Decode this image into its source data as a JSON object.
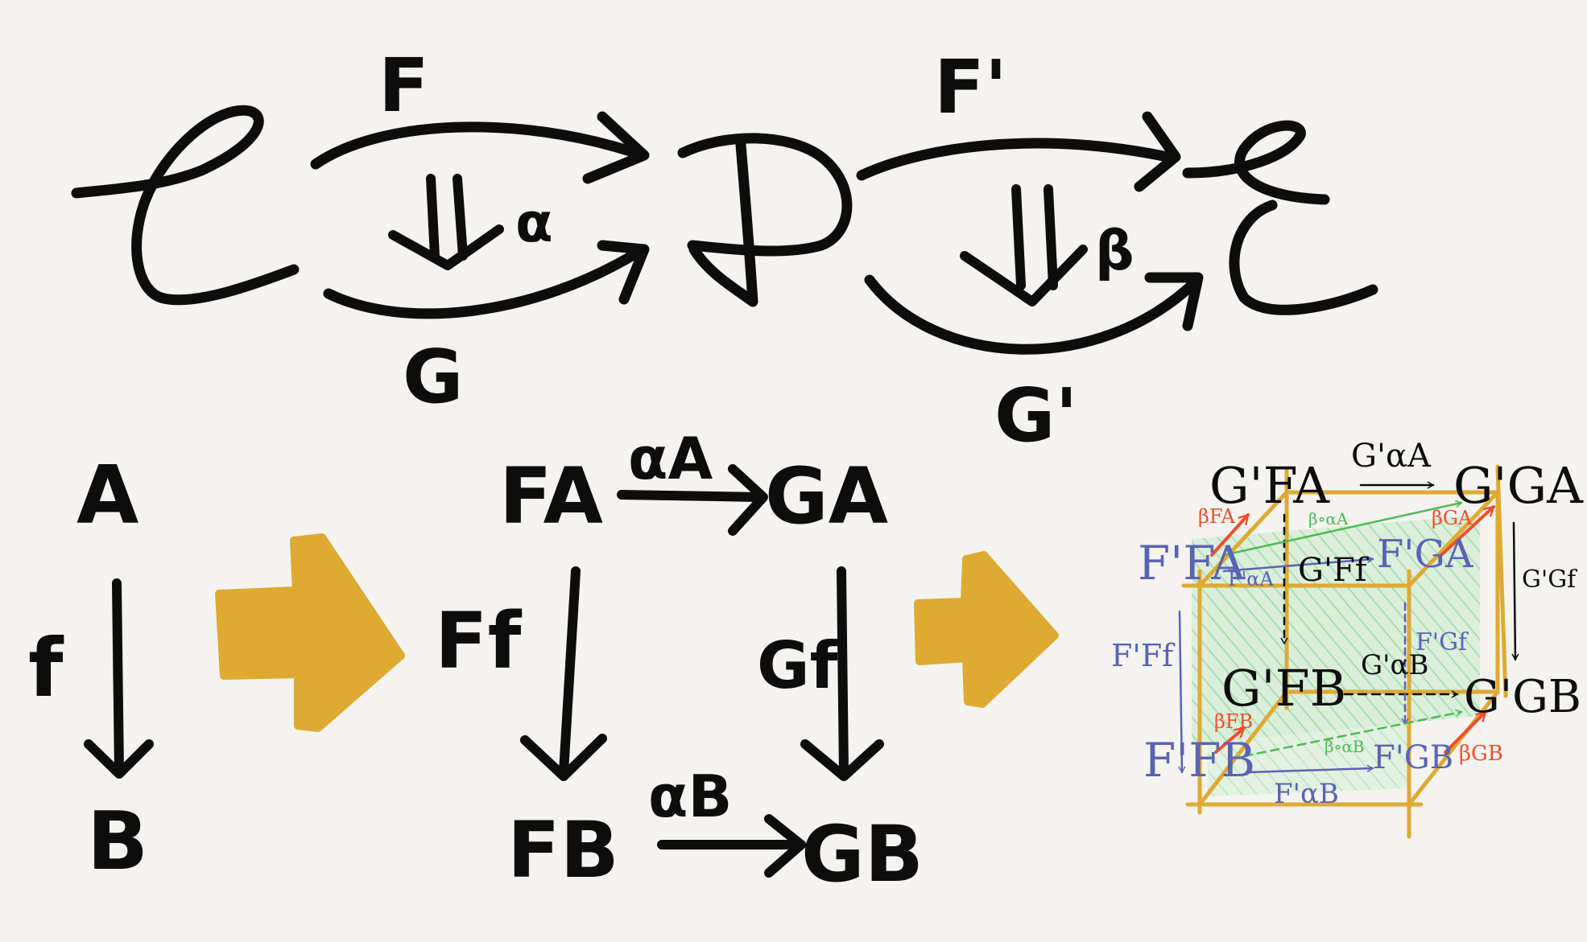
{
  "colors": {
    "ink": "#0d0d0d",
    "gold": "#deaa32",
    "blue": "#5a63b5",
    "red": "#ef4e2f",
    "green": "#4fba55",
    "green_fill": "#bfe6c3",
    "background": "#f4f3ef"
  },
  "top_diagram": {
    "cat_c": "𝒞",
    "cat_d": "𝒟",
    "cat_e": "ℰ",
    "label_f": "F",
    "label_g": "G",
    "label_alpha": "α",
    "label_f_prime": "F'",
    "label_g_prime": "G'",
    "label_beta": "β"
  },
  "arrow_diagram": {
    "obj_a": "A",
    "obj_b": "B",
    "morph_f": "f"
  },
  "naturality_square": {
    "fa": "FA",
    "ga": "GA",
    "fb": "FB",
    "gb": "GB",
    "alpha_a": "αA",
    "alpha_b": "αB",
    "ff": "Ff",
    "gf": "Gf"
  },
  "cube": {
    "gfa": "G'FA",
    "gga": "G'GA",
    "ffa": "F'FA",
    "fga": "F'GA",
    "gfb": "G'FB",
    "ggb": "G'GB",
    "ffb": "F'FB",
    "fgb": "F'GB",
    "g_alpha_a": "G'αA",
    "g_alpha_b": "G'αB",
    "f_alpha_a": "F'αA",
    "f_alpha_b": "F'αB",
    "g_ff": "G'Ff",
    "g_gf": "G'Gf",
    "f_ff": "F'Ff",
    "f_gf": "F'Gf",
    "beta_fa": "βFA",
    "beta_ga": "βGA",
    "beta_fb": "βFB",
    "beta_gb": "βGB",
    "beta_alpha_a": "β∘αA",
    "beta_alpha_b": "β∘αB"
  }
}
